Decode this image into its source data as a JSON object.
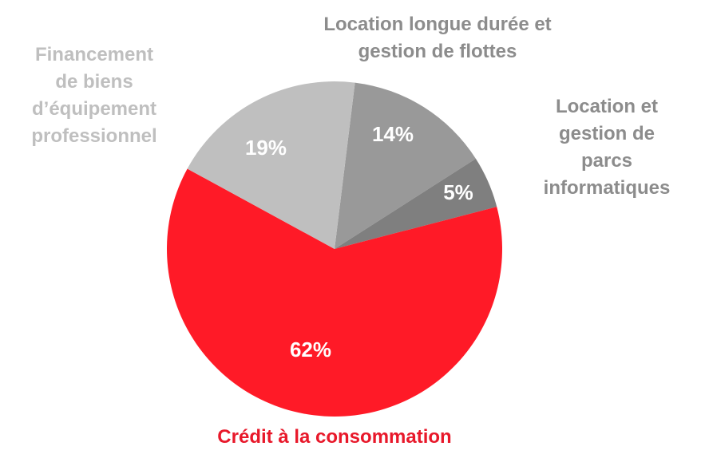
{
  "chart_data": {
    "type": "pie",
    "categories": [
      "Location longue durée et\ngestion de flottes",
      "Location et\ngestion de parcs\ninformatiques",
      "Crédit à la consommation",
      "Financement\nde biens\nd’équipement\nprofessionnel"
    ],
    "values": [
      14,
      5,
      62,
      19
    ],
    "value_labels": [
      "14%",
      "5%",
      "62%",
      "19%"
    ],
    "colors": [
      "#999999",
      "#7f7f7f",
      "#ff1a27",
      "#bfbfbf"
    ],
    "label_colors": [
      "#8c8c8c",
      "#8c8c8c",
      "#e8182a",
      "#bfbfbf"
    ]
  }
}
